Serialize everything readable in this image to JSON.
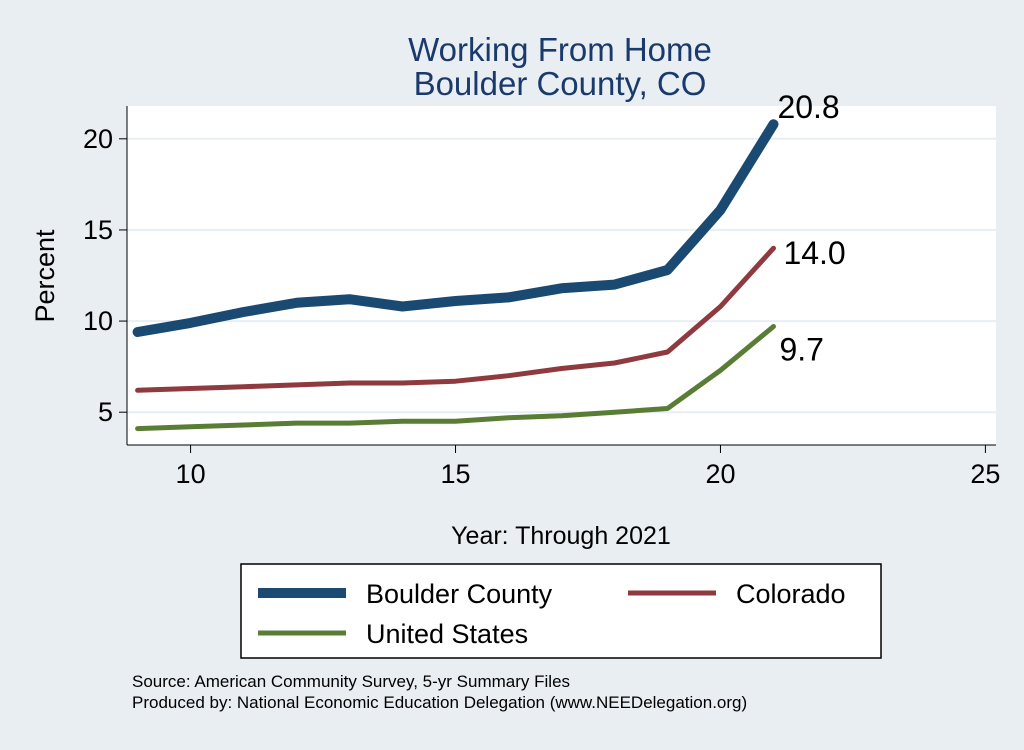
{
  "chart_data": {
    "type": "line",
    "title": [
      "Working From Home",
      "Boulder County, CO"
    ],
    "xlabel": "Year: Through 2021",
    "ylabel": "Percent",
    "xlim": [
      8.8,
      25.2
    ],
    "ylim": [
      3.2,
      21.8
    ],
    "xticks": [
      10,
      15,
      20,
      25
    ],
    "yticks": [
      5,
      10,
      15,
      20
    ],
    "grid": "horizontal",
    "legend_position": "bottom",
    "colors": {
      "background": "#e9eef3",
      "plot_background": "#ffffff",
      "grid": "#e8eef3",
      "title": "#1a3a6b",
      "text": "#000000"
    },
    "series": [
      {
        "name": "Boulder County",
        "color": "#1a4a72",
        "line_width": 10,
        "x": [
          9,
          10,
          11,
          12,
          13,
          14,
          15,
          16,
          17,
          18,
          19,
          20,
          21
        ],
        "values": [
          9.4,
          9.9,
          10.5,
          11.0,
          11.2,
          10.8,
          11.1,
          11.3,
          11.8,
          12.0,
          12.8,
          16.1,
          20.8
        ],
        "end_label": "20.8"
      },
      {
        "name": "Colorado",
        "color": "#8f3a3f",
        "line_width": 5,
        "x": [
          9,
          10,
          11,
          12,
          13,
          14,
          15,
          16,
          17,
          18,
          19,
          20,
          21
        ],
        "values": [
          6.2,
          6.3,
          6.4,
          6.5,
          6.6,
          6.6,
          6.7,
          7.0,
          7.4,
          7.7,
          8.3,
          10.8,
          14.0
        ],
        "end_label": "14.0"
      },
      {
        "name": "United States",
        "color": "#5a7d35",
        "line_width": 5,
        "x": [
          9,
          10,
          11,
          12,
          13,
          14,
          15,
          16,
          17,
          18,
          19,
          20,
          21
        ],
        "values": [
          4.1,
          4.2,
          4.3,
          4.4,
          4.4,
          4.5,
          4.5,
          4.7,
          4.8,
          5.0,
          5.2,
          7.3,
          9.7
        ],
        "end_label": "9.7"
      }
    ],
    "source_note": [
      "Source: American Community Survey, 5-yr Summary Files",
      "Produced by: National Economic Education Delegation (www.NEEDelegation.org)"
    ]
  }
}
